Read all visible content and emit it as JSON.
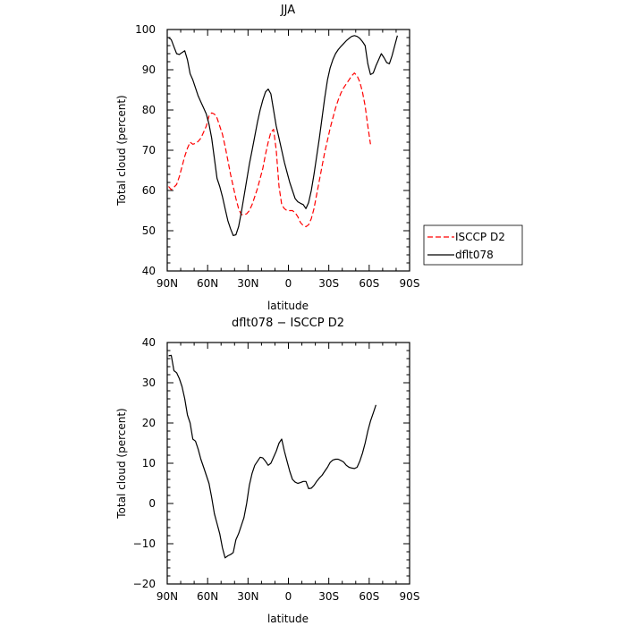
{
  "chart_data": [
    {
      "type": "line",
      "title": "JJA",
      "xlabel": "latitude",
      "ylabel": "Total cloud (percent)",
      "xlim": [
        90,
        -90
      ],
      "ylim": [
        40,
        100
      ],
      "x_ticks": [
        90,
        60,
        30,
        0,
        -30,
        -60,
        -90
      ],
      "x_tick_labels": [
        "90N",
        "60N",
        "30N",
        "0",
        "30S",
        "60S",
        "90S"
      ],
      "y_ticks": [
        40,
        50,
        60,
        70,
        80,
        90,
        100
      ],
      "y_tick_labels": [
        "40",
        "50",
        "60",
        "70",
        "80",
        "90",
        "100"
      ],
      "legend_position": "right",
      "series": [
        {
          "name": "ISCCP D2",
          "color": "#ff0000",
          "dash": "dashed",
          "x": [
            89,
            87,
            85,
            83,
            81,
            79,
            77,
            75,
            73,
            71,
            69,
            67,
            65,
            63,
            61,
            59,
            57,
            55,
            53,
            51,
            49,
            47,
            45,
            43,
            41,
            39,
            37,
            35,
            33,
            31,
            29,
            27,
            25,
            23,
            21,
            19,
            17,
            15,
            13,
            11,
            9,
            7,
            5,
            3,
            1,
            -1,
            -3,
            -5,
            -7,
            -9,
            -11,
            -13,
            -15,
            -17,
            -19,
            -21,
            -23,
            -25,
            -27,
            -29,
            -31,
            -33,
            -35,
            -37,
            -39,
            -41,
            -43,
            -45,
            -47,
            -49,
            -51,
            -53,
            -55,
            -57,
            -59,
            -61,
            -63,
            -65,
            -67,
            -69
          ],
          "values": [
            61,
            60.2,
            60.8,
            61.5,
            63.5,
            66,
            68.5,
            70.5,
            72,
            71.5,
            71.7,
            72.2,
            73,
            74.5,
            76,
            78.5,
            79.3,
            79,
            78,
            76,
            74,
            71,
            67.5,
            64,
            61,
            58,
            55.5,
            54,
            54,
            54.2,
            55,
            56.5,
            58.5,
            60.5,
            63,
            65.5,
            69,
            72,
            74.5,
            75.2,
            70,
            61,
            56.5,
            55.5,
            55,
            55,
            55,
            54.5,
            53.5,
            52,
            51.3,
            51,
            51.5,
            53,
            55.5,
            59,
            62.5,
            66,
            69.5,
            72.5,
            75.5,
            78,
            80.5,
            82.5,
            84.2,
            85.5,
            86.5,
            87.5,
            88.5,
            89.2,
            88.5,
            87,
            84.5,
            81,
            76,
            71.5,
            null,
            null,
            null,
            null
          ]
        },
        {
          "name": "dflt078",
          "color": "#000000",
          "dash": "solid",
          "x": [
            89,
            87,
            85,
            83,
            81,
            79,
            77,
            75,
            73,
            71,
            69,
            67,
            65,
            63,
            61,
            59,
            57,
            55,
            53,
            51,
            49,
            47,
            45,
            43,
            41,
            39,
            37,
            35,
            33,
            31,
            29,
            27,
            25,
            23,
            21,
            19,
            17,
            15,
            13,
            11,
            9,
            7,
            5,
            3,
            1,
            -1,
            -3,
            -5,
            -7,
            -9,
            -11,
            -13,
            -15,
            -17,
            -19,
            -21,
            -23,
            -25,
            -27,
            -29,
            -31,
            -33,
            -35,
            -37,
            -39,
            -41,
            -43,
            -45,
            -47,
            -49,
            -51,
            -53,
            -55,
            -57,
            -59,
            -61,
            -63,
            -65,
            -67,
            -69,
            -71,
            -73,
            -75,
            -77,
            -79,
            -81,
            -83,
            -85,
            -87
          ],
          "values": [
            98,
            97.5,
            95.7,
            94,
            93.8,
            94.3,
            94.7,
            92.5,
            89,
            87.5,
            85.5,
            83.5,
            82,
            80.5,
            79,
            76.5,
            73,
            68,
            63,
            61,
            58.5,
            55.5,
            52.5,
            50.5,
            48.8,
            49,
            51,
            54.5,
            58.5,
            62.5,
            66.5,
            70,
            73.5,
            77,
            80,
            82.5,
            84.5,
            85.2,
            84,
            80,
            76,
            73,
            70,
            67,
            64.5,
            62,
            60,
            58,
            57.2,
            56.8,
            56.5,
            55.5,
            57,
            60,
            64,
            68.5,
            73,
            78,
            83,
            87.5,
            90.5,
            92.5,
            94,
            95,
            95.8,
            96.5,
            97.2,
            97.8,
            98.3,
            98.5,
            98.3,
            97.8,
            97,
            96,
            91.5,
            88.8,
            89.2,
            91,
            92.5,
            94,
            93,
            91.8,
            91.5,
            93.5,
            96,
            98.5,
            null,
            null,
            null
          ]
        }
      ]
    },
    {
      "type": "line",
      "title": "dflt078 − ISCCP D2",
      "xlabel": "latitude",
      "ylabel": "Total cloud (percent)",
      "xlim": [
        90,
        -90
      ],
      "ylim": [
        -20,
        40
      ],
      "x_ticks": [
        90,
        60,
        30,
        0,
        -30,
        -60,
        -90
      ],
      "x_tick_labels": [
        "90N",
        "60N",
        "30N",
        "0",
        "30S",
        "60S",
        "90S"
      ],
      "y_ticks": [
        -20,
        -10,
        0,
        10,
        20,
        30,
        40
      ],
      "y_tick_labels": [
        "−20",
        "−10",
        "0",
        "10",
        "20",
        "30",
        "40"
      ],
      "series": [
        {
          "color": "#000000",
          "dash": "solid",
          "x": [
            89,
            87,
            85,
            83,
            81,
            79,
            77,
            75,
            73,
            71,
            69,
            67,
            65,
            63,
            61,
            59,
            57,
            55,
            53,
            51,
            49,
            47,
            45,
            43,
            41,
            39,
            37,
            35,
            33,
            31,
            29,
            27,
            25,
            23,
            21,
            19,
            17,
            15,
            13,
            11,
            9,
            7,
            5,
            3,
            1,
            -1,
            -3,
            -5,
            -7,
            -9,
            -11,
            -13,
            -15,
            -17,
            -19,
            -21,
            -23,
            -25,
            -27,
            -29,
            -31,
            -33,
            -35,
            -37,
            -39,
            -41,
            -43,
            -45,
            -47,
            -49,
            -51,
            -53,
            -55,
            -57,
            -59,
            -61,
            -63,
            -65
          ],
          "values": [
            36.7,
            36.8,
            33,
            32.5,
            31,
            29,
            26,
            22,
            20,
            16,
            15.5,
            13.5,
            11,
            9,
            7,
            5,
            1.5,
            -2.5,
            -5,
            -7.5,
            -11,
            -13.5,
            -13,
            -12.7,
            -12.2,
            -9,
            -7.5,
            -5.5,
            -3.5,
            0,
            4.5,
            7.5,
            9.5,
            10.5,
            11.5,
            11.3,
            10.5,
            9.5,
            10,
            11.5,
            13,
            15,
            16,
            13,
            10.5,
            8,
            6,
            5.3,
            5,
            5.2,
            5.5,
            5.5,
            3.7,
            3.8,
            4.5,
            5.5,
            6.3,
            7,
            8,
            9,
            10.2,
            10.8,
            11,
            11,
            10.7,
            10.3,
            9.5,
            9,
            8.8,
            8.7,
            9,
            10.5,
            12.5,
            15,
            18,
            20.5,
            22.5,
            24.5
          ]
        }
      ]
    }
  ]
}
